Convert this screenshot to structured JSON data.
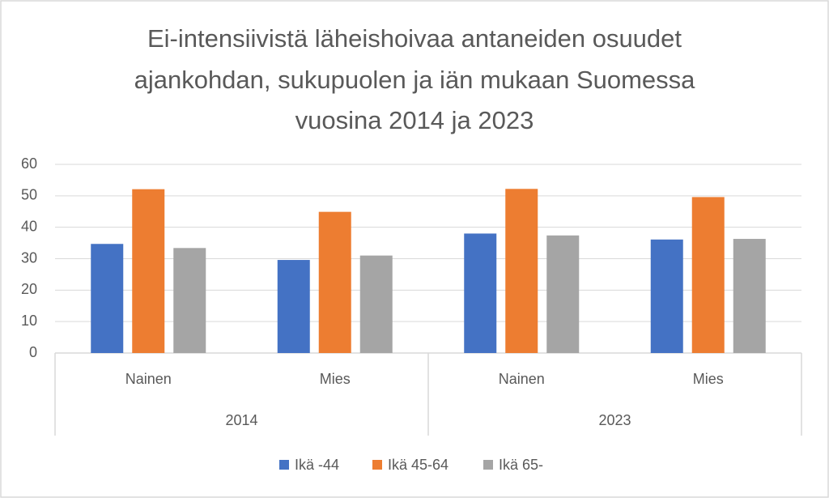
{
  "chart_data": {
    "type": "bar",
    "title": [
      "Ei-intensiivistä läheishoivaa antaneiden osuudet",
      "ajankohdan, sukupuolen ja iän mukaan Suomessa",
      "vuosina 2014 ja 2023"
    ],
    "categories": [
      "Nainen",
      "Mies",
      "Nainen",
      "Mies"
    ],
    "groups": [
      "2014",
      "2023"
    ],
    "series": [
      {
        "name": "Ikä -44",
        "color": "#4472c4",
        "values": [
          34.7,
          29.6,
          38.0,
          36.1
        ]
      },
      {
        "name": "Ikä 45-64",
        "color": "#ed7d31",
        "values": [
          52.1,
          44.9,
          52.2,
          49.6
        ]
      },
      {
        "name": "Ikä 65-",
        "color": "#a5a5a5",
        "values": [
          33.4,
          31.0,
          37.4,
          36.3
        ]
      }
    ],
    "ylim": [
      0,
      60
    ],
    "yticks": [
      0,
      10,
      20,
      30,
      40,
      50,
      60
    ],
    "grid": true,
    "legend": "bottom"
  }
}
